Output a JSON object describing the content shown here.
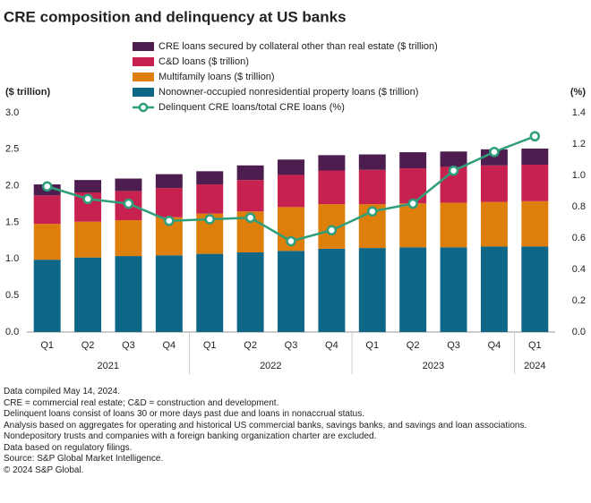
{
  "chart_data": {
    "type": "bar",
    "title": "CRE composition and delinquency at US banks",
    "y_label": "($ trillion)",
    "y2_label": "(%)",
    "groups": [
      {
        "label": "2021",
        "categories": [
          "Q1",
          "Q2",
          "Q3",
          "Q4"
        ]
      },
      {
        "label": "2022",
        "categories": [
          "Q1",
          "Q2",
          "Q3",
          "Q4"
        ]
      },
      {
        "label": "2023",
        "categories": [
          "Q1",
          "Q2",
          "Q3",
          "Q4"
        ]
      },
      {
        "label": "2024",
        "categories": [
          "Q1"
        ]
      }
    ],
    "series": [
      {
        "name": "Nonowner-occupied nonresidential property loans ($ trillion)",
        "color": "#0e6787",
        "values": [
          0.99,
          1.02,
          1.04,
          1.05,
          1.07,
          1.09,
          1.11,
          1.14,
          1.15,
          1.16,
          1.16,
          1.17,
          1.17
        ]
      },
      {
        "name": "Multifamily loans ($ trillion)",
        "color": "#de7e0b",
        "values": [
          0.49,
          0.49,
          0.49,
          0.52,
          0.55,
          0.56,
          0.6,
          0.61,
          0.6,
          0.6,
          0.61,
          0.61,
          0.62
        ]
      },
      {
        "name": "C&D loans ($ trillion)",
        "color": "#c7224f",
        "values": [
          0.39,
          0.4,
          0.4,
          0.4,
          0.4,
          0.43,
          0.44,
          0.46,
          0.47,
          0.48,
          0.49,
          0.5,
          0.5
        ]
      },
      {
        "name": "CRE loans secured by collateral other than real estate ($ trillion)",
        "color": "#4d1d4f",
        "values": [
          0.15,
          0.17,
          0.17,
          0.19,
          0.18,
          0.2,
          0.21,
          0.21,
          0.21,
          0.22,
          0.21,
          0.22,
          0.22
        ]
      },
      {
        "name": "Delinquent CRE loans/total CRE loans (%)",
        "color": "#2f9e7b",
        "axis": "y2",
        "type": "line",
        "values": [
          0.93,
          0.85,
          0.82,
          0.71,
          0.72,
          0.73,
          0.58,
          0.65,
          0.77,
          0.82,
          1.03,
          1.15,
          1.25
        ]
      }
    ],
    "ylim": [
      0,
      3
    ],
    "yticks": [
      {
        "value": 0,
        "label": "0.0"
      },
      0.5,
      {
        "value": 1,
        "label": "1.0"
      },
      1.5,
      {
        "value": 2,
        "label": "2.0"
      },
      2.5,
      {
        "value": 3,
        "label": "3.0"
      }
    ],
    "y2lim": [
      0,
      1.4
    ],
    "y2ticks": [
      {
        "value": 0,
        "label": "0.0"
      },
      0.2,
      0.4,
      0.6,
      0.8,
      {
        "value": 1,
        "label": "1.0"
      },
      1.2,
      1.4
    ],
    "notes": [
      "Data compiled May 14, 2024.",
      "CRE = commercial real estate; C&D = construction and development.",
      "Delinquent loans consist of loans 30 or more days past due and loans in nonaccrual status.",
      "Analysis based on aggregates for operating and historical US commercial banks, savings banks, and savings and loan associations. Nondepository trusts and companies with a foreign banking organization charter are excluded.",
      "Data based on regulatory filings.",
      "Source: S&P Global Market Intelligence.",
      "© 2024 S&P Global."
    ]
  }
}
